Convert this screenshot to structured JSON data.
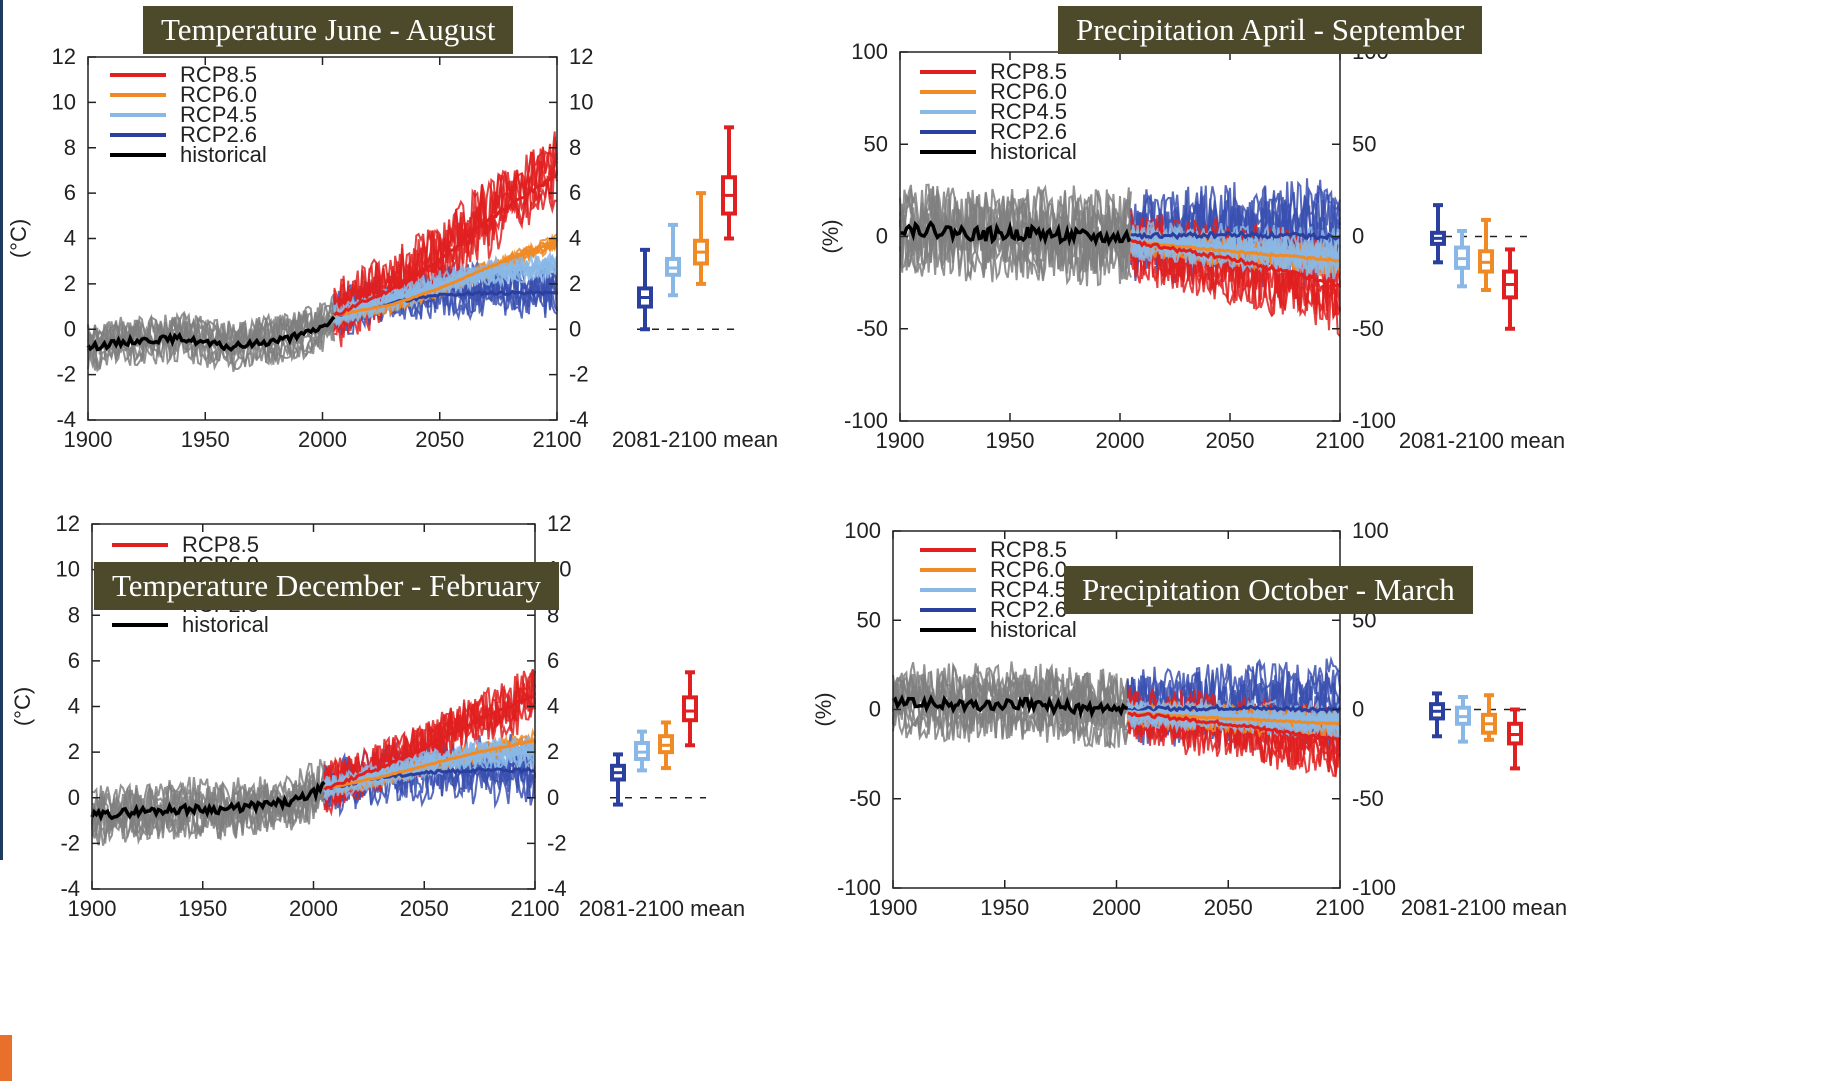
{
  "chart_data": [
    {
      "type": "line",
      "title": "Temperature  June - August",
      "ylabel": "(°C)",
      "xlabel": "",
      "xlim": [
        1900,
        2100
      ],
      "ylim": [
        -4,
        12
      ],
      "xticks": [
        "1900",
        "1950",
        "2000",
        "2050",
        "2100"
      ],
      "yticks": [
        "-4",
        "-2",
        "0",
        "2",
        "4",
        "6",
        "8",
        "10",
        "12"
      ],
      "boxplot_label": "2081-2100 mean",
      "legend": [
        "RCP8.5",
        "RCP6.0",
        "RCP4.5",
        "RCP2.6",
        "historical"
      ],
      "series": [
        {
          "name": "historical",
          "color": "#000000",
          "x": [
            1900,
            1920,
            1940,
            1960,
            1980,
            1990,
            2000,
            2005
          ],
          "y": [
            -0.8,
            -0.5,
            -0.4,
            -0.8,
            -0.5,
            -0.3,
            0.1,
            0.5
          ],
          "spread_color": "#7f7f7f",
          "spread": 1.2
        },
        {
          "name": "RCP2.6",
          "color": "#2b3f9e",
          "x": [
            2005,
            2030,
            2050,
            2070,
            2100
          ],
          "y": [
            0.6,
            1.2,
            1.5,
            1.6,
            1.6
          ],
          "spread_color": "#3a50b0",
          "spread": 1.6
        },
        {
          "name": "RCP4.5",
          "color": "#8ab8e6",
          "x": [
            2005,
            2030,
            2050,
            2070,
            2100
          ],
          "y": [
            0.6,
            1.3,
            2.0,
            2.5,
            2.8
          ],
          "spread_color": "#8ab8e6",
          "spread": 0.8
        },
        {
          "name": "RCP6.0",
          "color": "#f08a24",
          "x": [
            2005,
            2030,
            2050,
            2070,
            2100
          ],
          "y": [
            0.6,
            1.1,
            1.8,
            2.7,
            3.9
          ],
          "spread_color": "#f08a24",
          "spread": 0.5
        },
        {
          "name": "RCP8.5",
          "color": "#e02020",
          "x": [
            2005,
            2030,
            2050,
            2070,
            2100
          ],
          "y": [
            0.6,
            1.8,
            3.0,
            4.8,
            6.8
          ],
          "spread_color": "#e02020",
          "spread": 2.2
        }
      ],
      "boxes": [
        {
          "name": "RCP2.6",
          "color": "#2b3f9e",
          "min": 0.0,
          "q1": 1.0,
          "median": 1.4,
          "q3": 1.8,
          "max": 3.5
        },
        {
          "name": "RCP4.5",
          "color": "#8ab8e6",
          "min": 1.5,
          "q1": 2.4,
          "median": 2.7,
          "q3": 3.1,
          "max": 4.6
        },
        {
          "name": "RCP6.0",
          "color": "#f08a24",
          "min": 2.0,
          "q1": 2.9,
          "median": 3.4,
          "q3": 3.9,
          "max": 6.0
        },
        {
          "name": "RCP8.5",
          "color": "#e02020",
          "min": 4.0,
          "q1": 5.1,
          "median": 5.9,
          "q3": 6.7,
          "max": 8.9
        }
      ]
    },
    {
      "type": "line",
      "title": "Precipitation April - September",
      "ylabel": "(%)",
      "xlabel": "",
      "xlim": [
        1900,
        2100
      ],
      "ylim": [
        -100,
        100
      ],
      "xticks": [
        "1900",
        "1950",
        "2000",
        "2050",
        "2100"
      ],
      "yticks": [
        "-100",
        "-50",
        "0",
        "50",
        "100"
      ],
      "boxplot_label": "2081-2100 mean",
      "legend": [
        "RCP8.5",
        "RCP6.0",
        "RCP4.5",
        "RCP2.6",
        "historical"
      ],
      "series": [
        {
          "name": "historical",
          "color": "#000000",
          "x": [
            1900,
            1920,
            1940,
            1960,
            1980,
            2000,
            2005
          ],
          "y": [
            5,
            3,
            1,
            2,
            0,
            -1,
            0
          ],
          "spread_color": "#7f7f7f",
          "spread": 30
        },
        {
          "name": "RCP2.6",
          "color": "#2b3f9e",
          "x": [
            2005,
            2050,
            2100
          ],
          "y": [
            0,
            1,
            0
          ],
          "spread_color": "#3a50b0",
          "spread": 35
        },
        {
          "name": "RCP4.5",
          "color": "#8ab8e6",
          "x": [
            2005,
            2050,
            2100
          ],
          "y": [
            -2,
            -6,
            -10
          ],
          "spread_color": "#8ab8e6",
          "spread": 15
        },
        {
          "name": "RCP6.0",
          "color": "#f08a24",
          "x": [
            2005,
            2050,
            2100
          ],
          "y": [
            -3,
            -8,
            -13
          ],
          "spread_color": "#f08a24",
          "spread": 12
        },
        {
          "name": "RCP8.5",
          "color": "#e02020",
          "x": [
            2005,
            2050,
            2100
          ],
          "y": [
            -3,
            -12,
            -26
          ],
          "spread_color": "#e02020",
          "spread": 30
        }
      ],
      "boxes": [
        {
          "name": "RCP2.6",
          "color": "#2b3f9e",
          "min": -14,
          "q1": -4,
          "median": -1,
          "q3": 2,
          "max": 17
        },
        {
          "name": "RCP4.5",
          "color": "#8ab8e6",
          "min": -27,
          "q1": -17,
          "median": -12,
          "q3": -6,
          "max": 3
        },
        {
          "name": "RCP6.0",
          "color": "#f08a24",
          "min": -29,
          "q1": -19,
          "median": -14,
          "q3": -8,
          "max": 9
        },
        {
          "name": "RCP8.5",
          "color": "#e02020",
          "min": -50,
          "q1": -33,
          "median": -26,
          "q3": -19,
          "max": -7
        }
      ]
    },
    {
      "type": "line",
      "title": "Temperature  December - February",
      "ylabel": "(°C)",
      "xlabel": "",
      "xlim": [
        1900,
        2100
      ],
      "ylim": [
        -4,
        12
      ],
      "xticks": [
        "1900",
        "1950",
        "2000",
        "2050",
        "2100"
      ],
      "yticks": [
        "-4",
        "-2",
        "0",
        "2",
        "4",
        "6",
        "8",
        "10",
        "12"
      ],
      "boxplot_label": "2081-2100 mean",
      "legend": [
        "RCP8.5",
        "RCP6.0",
        "RCP4.5",
        "RCP2.6",
        "historical"
      ],
      "series": [
        {
          "name": "historical",
          "color": "#000000",
          "x": [
            1900,
            1920,
            1940,
            1960,
            1980,
            1990,
            2000,
            2005
          ],
          "y": [
            -0.8,
            -0.6,
            -0.5,
            -0.5,
            -0.3,
            -0.2,
            0.2,
            0.5
          ],
          "spread_color": "#7f7f7f",
          "spread": 1.5
        },
        {
          "name": "RCP2.6",
          "color": "#2b3f9e",
          "x": [
            2005,
            2030,
            2050,
            2070,
            2100
          ],
          "y": [
            0.4,
            0.9,
            1.1,
            1.2,
            1.2
          ],
          "spread_color": "#3a50b0",
          "spread": 1.8
        },
        {
          "name": "RCP4.5",
          "color": "#8ab8e6",
          "x": [
            2005,
            2030,
            2050,
            2070,
            2100
          ],
          "y": [
            0.4,
            1.0,
            1.5,
            1.8,
            2.0
          ],
          "spread_color": "#8ab8e6",
          "spread": 0.8
        },
        {
          "name": "RCP6.0",
          "color": "#f08a24",
          "x": [
            2005,
            2030,
            2050,
            2070,
            2100
          ],
          "y": [
            0.4,
            0.9,
            1.4,
            1.9,
            2.5
          ],
          "spread_color": "#f08a24",
          "spread": 0.5
        },
        {
          "name": "RCP8.5",
          "color": "#e02020",
          "x": [
            2005,
            2030,
            2050,
            2070,
            2100
          ],
          "y": [
            0.4,
            1.3,
            2.2,
            3.2,
            4.5
          ],
          "spread_color": "#e02020",
          "spread": 1.8
        }
      ],
      "boxes": [
        {
          "name": "RCP2.6",
          "color": "#2b3f9e",
          "min": -0.3,
          "q1": 0.8,
          "median": 1.1,
          "q3": 1.4,
          "max": 1.9
        },
        {
          "name": "RCP4.5",
          "color": "#8ab8e6",
          "min": 1.2,
          "q1": 1.7,
          "median": 2.0,
          "q3": 2.4,
          "max": 2.9
        },
        {
          "name": "RCP6.0",
          "color": "#f08a24",
          "min": 1.3,
          "q1": 2.0,
          "median": 2.3,
          "q3": 2.7,
          "max": 3.3
        },
        {
          "name": "RCP8.5",
          "color": "#e02020",
          "min": 2.3,
          "q1": 3.4,
          "median": 3.8,
          "q3": 4.4,
          "max": 5.5
        }
      ]
    },
    {
      "type": "line",
      "title": "Precipitation October - March",
      "ylabel": "(%)",
      "xlabel": "",
      "xlim": [
        1900,
        2100
      ],
      "ylim": [
        -100,
        100
      ],
      "xticks": [
        "1900",
        "1950",
        "2000",
        "2050",
        "2100"
      ],
      "yticks": [
        "-100",
        "-50",
        "0",
        "50",
        "100"
      ],
      "boxplot_label": "2081-2100 mean",
      "legend": [
        "RCP8.5",
        "RCP6.0",
        "RCP4.5",
        "RCP2.6",
        "historical"
      ],
      "series": [
        {
          "name": "historical",
          "color": "#000000",
          "x": [
            1900,
            1920,
            1940,
            1960,
            1980,
            2000,
            2005
          ],
          "y": [
            4,
            3,
            2,
            3,
            1,
            -1,
            0
          ],
          "spread_color": "#7f7f7f",
          "spread": 25
        },
        {
          "name": "RCP2.6",
          "color": "#2b3f9e",
          "x": [
            2005,
            2050,
            2100
          ],
          "y": [
            0,
            1,
            0
          ],
          "spread_color": "#3a50b0",
          "spread": 30
        },
        {
          "name": "RCP4.5",
          "color": "#8ab8e6",
          "x": [
            2005,
            2050,
            2100
          ],
          "y": [
            -1,
            -3,
            -5
          ],
          "spread_color": "#8ab8e6",
          "spread": 12
        },
        {
          "name": "RCP6.0",
          "color": "#f08a24",
          "x": [
            2005,
            2050,
            2100
          ],
          "y": [
            -2,
            -5,
            -8
          ],
          "spread_color": "#f08a24",
          "spread": 10
        },
        {
          "name": "RCP8.5",
          "color": "#e02020",
          "x": [
            2005,
            2050,
            2100
          ],
          "y": [
            -2,
            -8,
            -17
          ],
          "spread_color": "#e02020",
          "spread": 25
        }
      ],
      "boxes": [
        {
          "name": "RCP2.6",
          "color": "#2b3f9e",
          "min": -15,
          "q1": -5,
          "median": -1,
          "q3": 3,
          "max": 9
        },
        {
          "name": "RCP4.5",
          "color": "#8ab8e6",
          "min": -18,
          "q1": -8,
          "median": -4,
          "q3": 1,
          "max": 7
        },
        {
          "name": "RCP6.0",
          "color": "#f08a24",
          "min": -17,
          "q1": -13,
          "median": -8,
          "q3": -3,
          "max": 8
        },
        {
          "name": "RCP8.5",
          "color": "#e02020",
          "min": -33,
          "q1": -19,
          "median": -14,
          "q3": -8,
          "max": 0
        }
      ]
    }
  ]
}
